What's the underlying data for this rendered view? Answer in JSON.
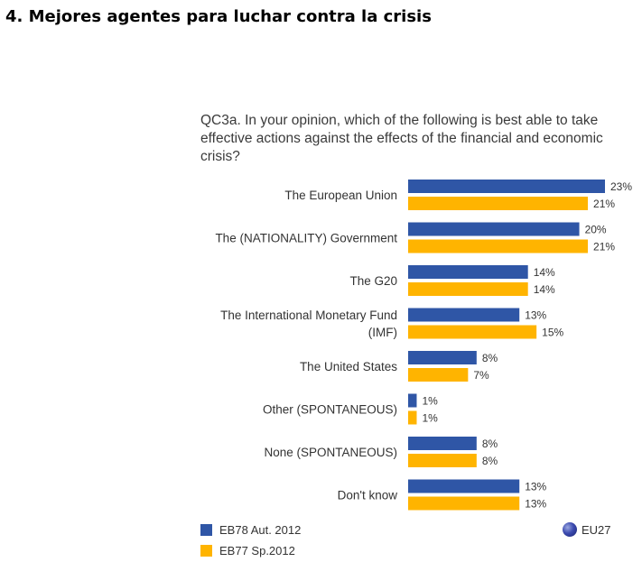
{
  "page": {
    "title": "4. Mejores agentes para luchar contra la crisis"
  },
  "chart_data": {
    "type": "bar",
    "orientation": "horizontal",
    "title": "QC3a. In your opinion, which of the following is best able to take effective actions against the effects of the financial and economic crisis?",
    "categories": [
      "The European Union",
      "The (NATIONALITY) Government",
      "The G20",
      "The International Monetary Fund (IMF)",
      "The United States",
      "Other (SPONTANEOUS)",
      "None (SPONTANEOUS)",
      "Don't know"
    ],
    "series": [
      {
        "name": "EB78 Aut. 2012",
        "color": "#2f56a6",
        "values": [
          23,
          20,
          14,
          13,
          8,
          1,
          8,
          13
        ]
      },
      {
        "name": "EB77 Sp.2012",
        "color": "#ffb400",
        "values": [
          21,
          21,
          14,
          15,
          7,
          1,
          8,
          13
        ]
      }
    ],
    "value_suffix": "%",
    "xlim": [
      0,
      23
    ],
    "grid": false,
    "legend": "bottom-left",
    "badge": {
      "label": "EU27",
      "icon": "globe-icon"
    }
  }
}
